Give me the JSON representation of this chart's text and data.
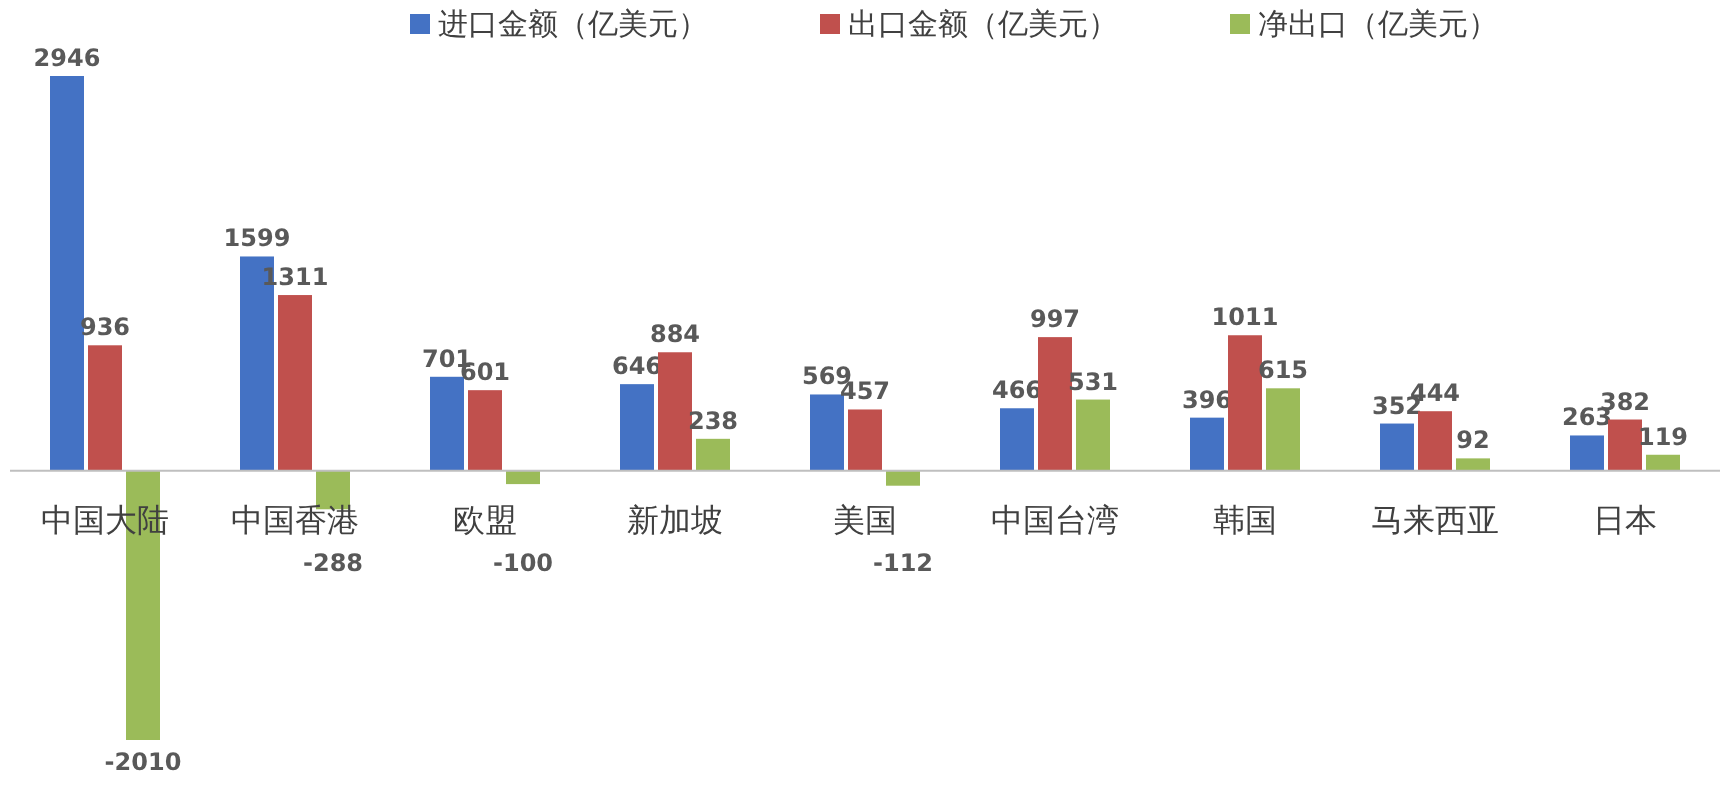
{
  "chart_data": {
    "type": "bar",
    "categories": [
      "中国大陆",
      "中国香港",
      "欧盟",
      "新加坡",
      "美国",
      "中国台湾",
      "韩国",
      "马来西亚",
      "日本"
    ],
    "series": [
      {
        "name": "进口金额（亿美元）",
        "color": "#4472c4",
        "values": [
          2946,
          1599,
          701,
          646,
          569,
          466,
          396,
          352,
          263
        ]
      },
      {
        "name": "出口金额（亿美元）",
        "color": "#c0504d",
        "values": [
          936,
          1311,
          601,
          884,
          457,
          997,
          1011,
          444,
          382
        ]
      },
      {
        "name": "净出口（亿美元）",
        "color": "#9bbb59",
        "values": [
          -2010,
          -288,
          -100,
          238,
          -112,
          531,
          615,
          92,
          119
        ]
      }
    ],
    "data_labels": true,
    "legend": "top"
  }
}
